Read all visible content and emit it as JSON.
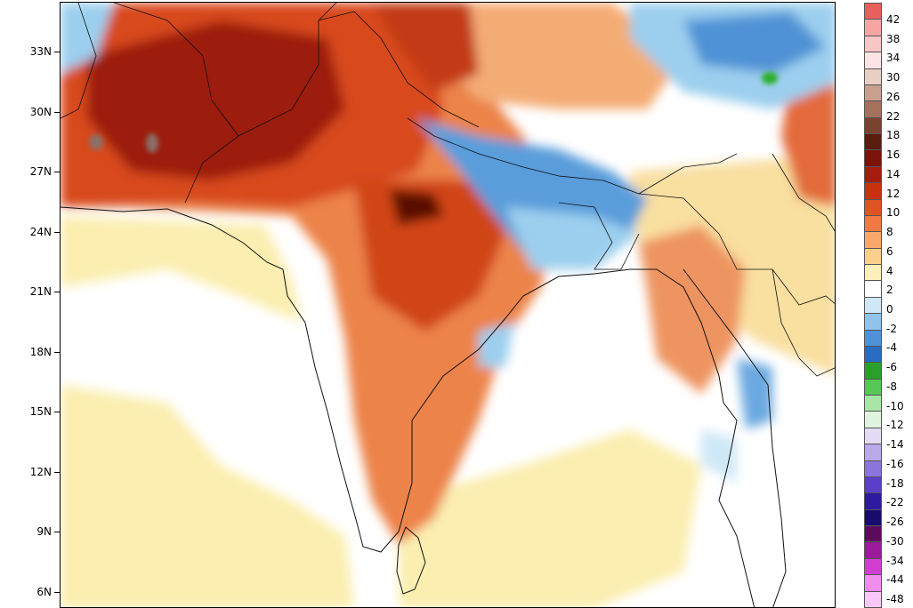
{
  "map": {
    "latitude_labels": [
      "33N",
      "30N",
      "27N",
      "24N",
      "21N",
      "18N",
      "15N",
      "12N",
      "9N",
      "6N"
    ],
    "palette": {
      "neg_light": "#cfe8f7",
      "neg_mid": "#9ccfee",
      "neg_strong": "#4f93d6",
      "neg_deep": "#2a6cc0",
      "green": "#2bb02b",
      "pos_pale": "#fdf6c9",
      "pos_light": "#f9e2a4",
      "pos_warm": "#f4b27a",
      "pos_orange": "#eb7a44",
      "pos_red": "#dc4a1f",
      "pos_deep": "#b82811",
      "pos_dark": "#7a1408",
      "pos_darkest": "#4a0a05"
    }
  },
  "colorbar": {
    "labels": [
      "42",
      "38",
      "34",
      "30",
      "26",
      "22",
      "18",
      "16",
      "14",
      "12",
      "10",
      "8",
      "6",
      "4",
      "2",
      "0",
      "-2",
      "-4",
      "-6",
      "-8",
      "-10",
      "-12",
      "-14",
      "-16",
      "-18",
      "-22",
      "-26",
      "-30",
      "-34",
      "-44",
      "-48"
    ],
    "colors": [
      "#e8605c",
      "#f5a6a2",
      "#f7c7c5",
      "#fbe4e3",
      "#ead0c4",
      "#c7a08e",
      "#a4715c",
      "#7c4230",
      "#5a1c0c",
      "#7a1408",
      "#a61c0c",
      "#c8300f",
      "#e05424",
      "#f07a44",
      "#f8a86c",
      "#fbd08c",
      "#fdf0b8",
      "#ffffff",
      "#cfe8f7",
      "#8fc4ec",
      "#4f93d6",
      "#2a6cc0",
      "#2aa02a",
      "#55c855",
      "#a8e6a8",
      "#dff5df",
      "#e4dcf5",
      "#b9a8ea",
      "#8c74dd",
      "#5b3fc6",
      "#2d1a9c",
      "#170c6b",
      "#5c0a5c",
      "#9a1c9a",
      "#d040d0",
      "#f08ef0",
      "#f9c8f9"
    ]
  }
}
